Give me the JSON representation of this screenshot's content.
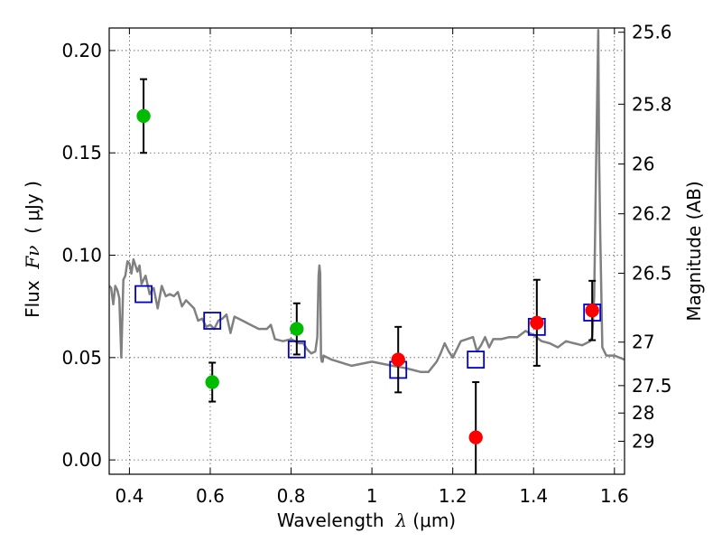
{
  "chart_data": {
    "type": "scatter",
    "xlabel": {
      "prefix": "Wavelength  ",
      "symbol": "λ",
      "suffix": " (μm)"
    },
    "ylabel": {
      "prefix": "Flux  ",
      "symbol": "Fν",
      "suffix": "  ( μJy )"
    },
    "y2label": "Magnitude (AB)",
    "xlim": [
      0.35,
      1.625
    ],
    "ylim": [
      -0.007,
      0.211
    ],
    "grid": true,
    "x_ticks": [
      {
        "value": 0.4,
        "label": "0.4"
      },
      {
        "value": 0.6,
        "label": "0.6"
      },
      {
        "value": 0.8,
        "label": "0.8"
      },
      {
        "value": 1.0,
        "label": "1"
      },
      {
        "value": 1.2,
        "label": "1.2"
      },
      {
        "value": 1.4,
        "label": "1.4"
      },
      {
        "value": 1.6,
        "label": "1.6"
      }
    ],
    "y_ticks": [
      {
        "value": 0.0,
        "label": "0.00"
      },
      {
        "value": 0.05,
        "label": "0.05"
      },
      {
        "value": 0.1,
        "label": "0.10"
      },
      {
        "value": 0.15,
        "label": "0.15"
      },
      {
        "value": 0.2,
        "label": "0.20"
      }
    ],
    "y2_ticks": [
      {
        "value": 25.6,
        "label": "25.6"
      },
      {
        "value": 25.8,
        "label": "25.8"
      },
      {
        "value": 26.0,
        "label": "26"
      },
      {
        "value": 26.2,
        "label": "26.2"
      },
      {
        "value": 26.5,
        "label": "26.5"
      },
      {
        "value": 27.0,
        "label": "27"
      },
      {
        "value": 27.5,
        "label": "27.5"
      },
      {
        "value": 28.0,
        "label": "28"
      },
      {
        "value": 29.0,
        "label": "29"
      }
    ],
    "model_sed": {
      "color": "#808080",
      "x": [
        0.35,
        0.355,
        0.36,
        0.365,
        0.37,
        0.375,
        0.38,
        0.385,
        0.39,
        0.395,
        0.4,
        0.405,
        0.41,
        0.415,
        0.42,
        0.425,
        0.43,
        0.44,
        0.45,
        0.46,
        0.47,
        0.48,
        0.49,
        0.5,
        0.51,
        0.52,
        0.53,
        0.54,
        0.55,
        0.56,
        0.57,
        0.58,
        0.59,
        0.6,
        0.61,
        0.62,
        0.63,
        0.64,
        0.65,
        0.66,
        0.68,
        0.7,
        0.72,
        0.74,
        0.75,
        0.76,
        0.78,
        0.8,
        0.82,
        0.83,
        0.84,
        0.85,
        0.86,
        0.865,
        0.868,
        0.87,
        0.872,
        0.874,
        0.876,
        0.878,
        0.88,
        0.9,
        0.95,
        1.0,
        1.05,
        1.08,
        1.1,
        1.12,
        1.14,
        1.16,
        1.17,
        1.18,
        1.19,
        1.2,
        1.22,
        1.25,
        1.26,
        1.27,
        1.28,
        1.29,
        1.3,
        1.32,
        1.34,
        1.36,
        1.38,
        1.4,
        1.42,
        1.44,
        1.46,
        1.48,
        1.5,
        1.52,
        1.54,
        1.545,
        1.55,
        1.555,
        1.56,
        1.562,
        1.565,
        1.57,
        1.58,
        1.6,
        1.625
      ],
      "y": [
        0.085,
        0.084,
        0.076,
        0.085,
        0.083,
        0.079,
        0.05,
        0.088,
        0.09,
        0.097,
        0.096,
        0.091,
        0.098,
        0.095,
        0.092,
        0.095,
        0.086,
        0.09,
        0.081,
        0.084,
        0.074,
        0.085,
        0.08,
        0.081,
        0.08,
        0.082,
        0.075,
        0.078,
        0.076,
        0.074,
        0.068,
        0.069,
        0.065,
        0.066,
        0.064,
        0.068,
        0.069,
        0.071,
        0.062,
        0.07,
        0.068,
        0.066,
        0.064,
        0.064,
        0.066,
        0.059,
        0.058,
        0.059,
        0.057,
        0.057,
        0.054,
        0.052,
        0.053,
        0.06,
        0.09,
        0.095,
        0.091,
        0.05,
        0.048,
        0.048,
        0.051,
        0.049,
        0.046,
        0.048,
        0.046,
        0.045,
        0.044,
        0.043,
        0.043,
        0.048,
        0.052,
        0.057,
        0.053,
        0.05,
        0.058,
        0.06,
        0.053,
        0.056,
        0.06,
        0.055,
        0.059,
        0.059,
        0.06,
        0.06,
        0.063,
        0.061,
        0.058,
        0.057,
        0.055,
        0.058,
        0.057,
        0.056,
        0.058,
        0.06,
        0.08,
        0.15,
        0.21,
        0.15,
        0.11,
        0.055,
        0.051,
        0.051,
        0.049
      ]
    },
    "series": [
      {
        "marker": "square-open",
        "color": "#0000cc",
        "points": [
          {
            "x": 0.435,
            "y": 0.081
          },
          {
            "x": 0.605,
            "y": 0.068
          },
          {
            "x": 0.814,
            "y": 0.054
          },
          {
            "x": 1.065,
            "y": 0.044
          },
          {
            "x": 1.257,
            "y": 0.049
          },
          {
            "x": 1.408,
            "y": 0.065
          },
          {
            "x": 1.545,
            "y": 0.072
          }
        ]
      },
      {
        "marker": "circle",
        "color": "#00bb00",
        "points": [
          {
            "x": 0.435,
            "y": 0.168,
            "yerr": 0.018
          },
          {
            "x": 0.605,
            "y": 0.038,
            "yerr": 0.0095
          },
          {
            "x": 0.814,
            "y": 0.064,
            "yerr": 0.0125
          }
        ]
      },
      {
        "marker": "circle",
        "color": "#ff0000",
        "points": [
          {
            "x": 1.065,
            "y": 0.049,
            "yerr": 0.016
          },
          {
            "x": 1.257,
            "y": 0.011,
            "yerr": 0.027
          },
          {
            "x": 1.408,
            "y": 0.067,
            "yerr": 0.021
          },
          {
            "x": 1.545,
            "y": 0.073,
            "yerr": 0.0145
          }
        ]
      }
    ]
  }
}
